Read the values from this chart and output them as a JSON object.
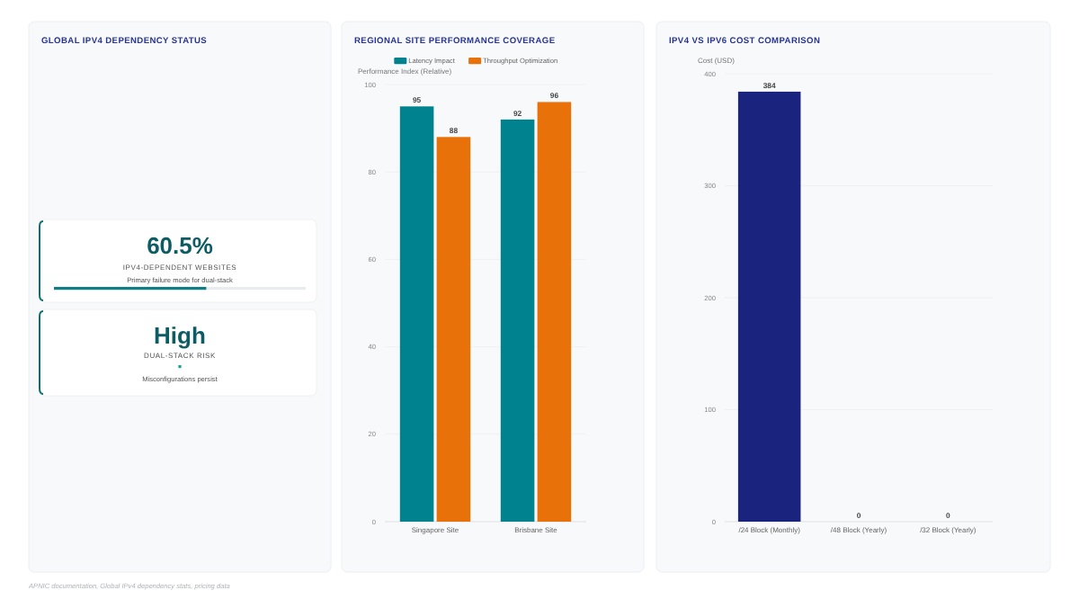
{
  "chart_data": [
    {
      "type": "other",
      "title": "GLOBAL IPV4 DEPENDENCY STATUS",
      "annotations": [
        "60.5%",
        "IPV4-DEPENDENT WEBSITES",
        "Primary failure mode for dual-stack",
        "High",
        "DUAL-STACK RISK",
        "Misconfigurations persist",
        "APNIC documentation, Global IPv4 dependency stats, pricing data"
      ]
    },
    {
      "type": "bar",
      "title": "REGIONAL SITE PERFORMANCE COVERAGE",
      "ylabel": "Performance Index (Relative)",
      "categories": [
        "Singapore Site",
        "Brisbane Site"
      ],
      "series": [
        {
          "name": "Latency Impact",
          "color": "#00838f",
          "values": [
            95,
            92
          ]
        },
        {
          "name": "Throughput Optimization",
          "color": "#e8710a",
          "values": [
            88,
            96
          ]
        }
      ],
      "ylim": [
        0,
        100
      ],
      "yticks": [
        0,
        20,
        40,
        60,
        80,
        100
      ],
      "grid": "y",
      "legend": "top",
      "data_labels": true
    },
    {
      "type": "bar",
      "title": "IPV4 VS IPV6 COST COMPARISON",
      "ylabel": "Cost (USD)",
      "categories": [
        "/24 Block (Monthly)",
        "/48 Block (Yearly)",
        "/32 Block (Yearly)"
      ],
      "values": [
        384,
        0,
        0
      ],
      "color": "#1a237e",
      "ylim": [
        0,
        400
      ],
      "yticks": [
        0,
        100,
        200,
        300,
        400
      ],
      "grid": "y",
      "data_labels": true
    }
  ]
}
